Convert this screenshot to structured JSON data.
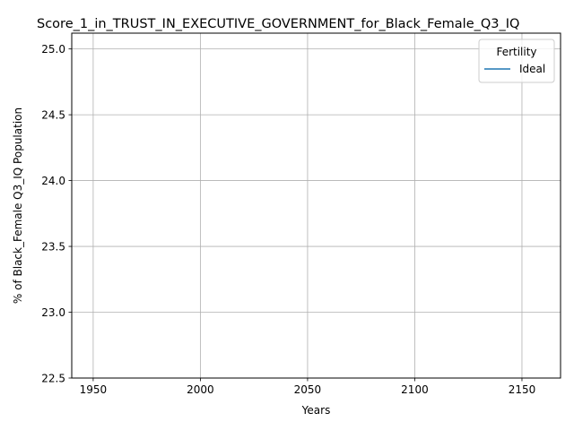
{
  "chart_data": {
    "type": "line",
    "title": "Score_1_in_TRUST_IN_EXECUTIVE_GOVERNMENT_for_Black_Female_Q3_IQ",
    "xlabel": "Years",
    "ylabel": "% of Black_Female Q3_IQ Population",
    "xlim": [
      1940,
      2168
    ],
    "ylim": [
      22.5,
      25.12
    ],
    "x_ticks": [
      1950,
      2000,
      2050,
      2100,
      2150
    ],
    "y_ticks": [
      22.5,
      23.0,
      23.5,
      24.0,
      24.5,
      25.0
    ],
    "x_tick_labels": [
      "1950",
      "2000",
      "2050",
      "2100",
      "2150"
    ],
    "y_tick_labels": [
      "22.5",
      "23.0",
      "23.5",
      "24.0",
      "24.5",
      "25.0"
    ],
    "grid": true,
    "legend": {
      "title": "Fertility",
      "placement": "top-right",
      "entries": [
        {
          "name": "Ideal",
          "color": "#1f77b4"
        }
      ]
    },
    "series": [
      {
        "name": "Ideal",
        "color": "#1f77b4",
        "x": [],
        "y": []
      }
    ]
  }
}
